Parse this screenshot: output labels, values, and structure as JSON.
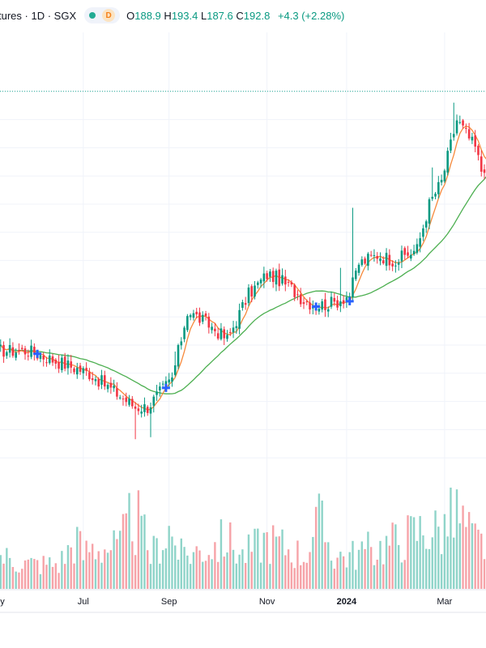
{
  "header": {
    "symbol_fragment": "tures",
    "interval": "1D",
    "exchange": "SGX",
    "badge": "D",
    "open_label": "O",
    "open": "188.9",
    "high_label": "H",
    "high": "193.4",
    "low_label": "L",
    "low": "187.6",
    "close_label": "C",
    "close": "192.8",
    "change": "+4.3 (+2.28%)"
  },
  "colors": {
    "up": "#089981",
    "down": "#f23645",
    "vol_up": "#8fd4c9",
    "vol_down": "#f6a3a8",
    "ma_fast": "#f7893b",
    "ma_slow": "#4caf50",
    "marker": "#2962ff",
    "grid": "#f0f3fa",
    "price_line": "#22ab94"
  },
  "chart_data": {
    "type": "candlestick",
    "xlabels": [
      "y",
      "Jul",
      "Sep",
      "Nov",
      "2024",
      "Mar"
    ],
    "xlabel_bold": "2024",
    "ylim": [
      20,
      170
    ],
    "last_price": 160,
    "ma_fast_name": "",
    "ma_slow_name": "",
    "ohlc": [],
    "volume": [],
    "ma_fast": [],
    "ma_slow": [],
    "markers": [
      13,
      55,
      104,
      115
    ],
    "anchors": {
      "t": [
        0,
        10,
        20,
        30,
        40,
        45,
        49,
        52,
        57,
        62,
        68,
        75,
        82,
        88,
        91,
        96,
        100,
        104,
        110,
        115,
        118,
        124,
        130,
        137,
        141,
        145,
        150,
        156,
        158,
        160
      ],
      "close": [
        68,
        68,
        64,
        60,
        52,
        48,
        48,
        52,
        58,
        82,
        78,
        72,
        88,
        95,
        94,
        90,
        86,
        84,
        85,
        88,
        99,
        102,
        100,
        104,
        120,
        128,
        150,
        140,
        132,
        135
      ]
    },
    "volume_profile": [
      [
        0,
        4
      ],
      [
        10,
        3
      ],
      [
        20,
        3
      ],
      [
        26,
        6
      ],
      [
        28,
        4
      ],
      [
        30,
        5
      ],
      [
        40,
        5
      ],
      [
        44,
        9
      ],
      [
        45,
        7
      ],
      [
        46,
        8
      ],
      [
        50,
        4
      ],
      [
        56,
        7
      ],
      [
        60,
        4
      ],
      [
        70,
        5
      ],
      [
        75,
        6
      ],
      [
        80,
        4
      ],
      [
        88,
        6
      ],
      [
        100,
        4
      ],
      [
        105,
        8
      ],
      [
        110,
        4
      ],
      [
        115,
        4
      ],
      [
        125,
        5
      ],
      [
        138,
        7
      ],
      [
        145,
        7
      ],
      [
        150,
        9
      ],
      [
        155,
        6
      ],
      [
        160,
        5
      ]
    ]
  }
}
